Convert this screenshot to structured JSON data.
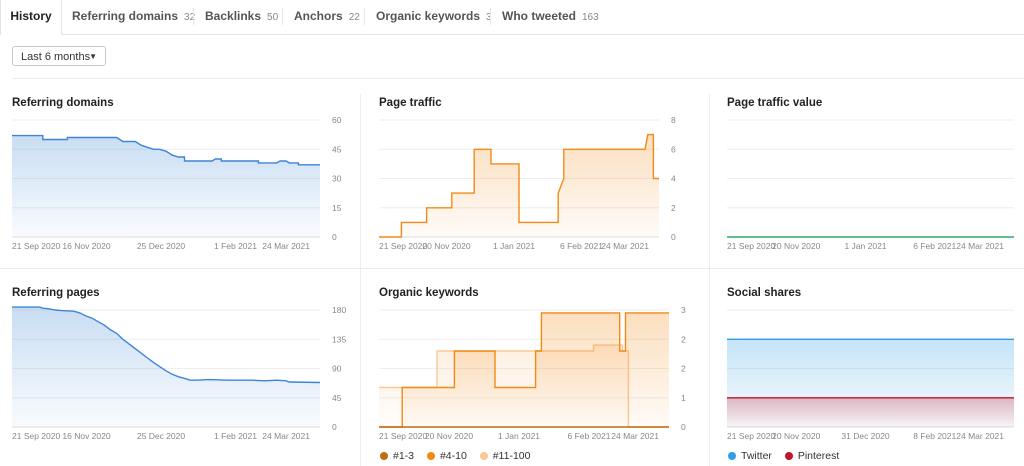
{
  "tabs": [
    {
      "label": "History",
      "count": ""
    },
    {
      "label": "Referring domains",
      "count": "32"
    },
    {
      "label": "Backlinks",
      "count": "50"
    },
    {
      "label": "Anchors",
      "count": "22"
    },
    {
      "label": "Organic keywords",
      "count": "3"
    },
    {
      "label": "Who tweeted",
      "count": "163"
    }
  ],
  "period_dropdown": {
    "value": "Last 6 months",
    "caret": "▼"
  },
  "chart_data": [
    {
      "title": "Referring domains",
      "type": "area",
      "x_ticks": [
        "21 Sep 2020",
        "16 Nov 2020",
        "25 Dec 2020",
        "1 Feb 2021",
        "24 Mar 2021"
      ],
      "y_ticks": [
        "60",
        "45",
        "30",
        "15",
        "0"
      ],
      "ylim": [
        0,
        60
      ],
      "color": "#3d86d6",
      "series": [
        {
          "values": [
            [
              0,
              52
            ],
            [
              0.1,
              52
            ],
            [
              0.1,
              50
            ],
            [
              0.18,
              50
            ],
            [
              0.18,
              51
            ],
            [
              0.34,
              51
            ],
            [
              0.36,
              49
            ],
            [
              0.4,
              49
            ],
            [
              0.42,
              47
            ],
            [
              0.44,
              46
            ],
            [
              0.46,
              45
            ],
            [
              0.48,
              45
            ],
            [
              0.5,
              44
            ],
            [
              0.52,
              42
            ],
            [
              0.54,
              41
            ],
            [
              0.56,
              41
            ],
            [
              0.56,
              39
            ],
            [
              0.65,
              39
            ],
            [
              0.66,
              40
            ],
            [
              0.68,
              40
            ],
            [
              0.68,
              39
            ],
            [
              0.8,
              39
            ],
            [
              0.8,
              38
            ],
            [
              0.86,
              38
            ],
            [
              0.87,
              39
            ],
            [
              0.89,
              39
            ],
            [
              0.9,
              38
            ],
            [
              0.93,
              38
            ],
            [
              0.93,
              37
            ],
            [
              1,
              37
            ]
          ]
        }
      ]
    },
    {
      "title": "Page traffic",
      "type": "area",
      "x_ticks": [
        "21 Sep 2020",
        "20 Nov 2020",
        "1 Jan 2021",
        "6 Feb 2021",
        "24 Mar 2021"
      ],
      "y_ticks": [
        "8",
        "6",
        "4",
        "2",
        "0"
      ],
      "ylim": [
        0,
        8
      ],
      "color": "#f28a17",
      "series": [
        {
          "values": [
            [
              0,
              0
            ],
            [
              0.08,
              0
            ],
            [
              0.08,
              1
            ],
            [
              0.17,
              1
            ],
            [
              0.17,
              2
            ],
            [
              0.26,
              2
            ],
            [
              0.26,
              3
            ],
            [
              0.26,
              3
            ],
            [
              0.26,
              3
            ],
            [
              0.26,
              3
            ],
            [
              0.26,
              3
            ],
            [
              0.26,
              3
            ],
            [
              0.26,
              3
            ],
            [
              0.26,
              3
            ],
            [
              0.26,
              3
            ],
            [
              0.26,
              3
            ],
            [
              0.26,
              3
            ],
            [
              0.26,
              3
            ],
            [
              0.26,
              3
            ],
            [
              0.26,
              3
            ],
            [
              0.26,
              3
            ],
            [
              0.26,
              3
            ],
            [
              0.26,
              3
            ],
            [
              0.26,
              3
            ],
            [
              0.26,
              3
            ],
            [
              0.26,
              3
            ],
            [
              0.26,
              3
            ],
            [
              0.26,
              3
            ],
            [
              0.26,
              3
            ],
            [
              0.26,
              3
            ],
            [
              0.26,
              3
            ],
            [
              0.26,
              3
            ],
            [
              0.26,
              3
            ],
            [
              0.26,
              3
            ],
            [
              0.26,
              3
            ],
            [
              0.26,
              3
            ],
            [
              0.26,
              3
            ],
            [
              0.26,
              3
            ],
            [
              0.26,
              3
            ],
            [
              0.26,
              3
            ],
            [
              0.26,
              3
            ],
            [
              0.26,
              3
            ],
            [
              0.26,
              3
            ],
            [
              0.26,
              3
            ],
            [
              0.26,
              3
            ],
            [
              0.26,
              3
            ],
            [
              0.26,
              3
            ],
            [
              0.26,
              3
            ],
            [
              0.26,
              3
            ],
            [
              0.26,
              3
            ],
            [
              0.26,
              3
            ],
            [
              0.26,
              3
            ],
            [
              0.26,
              3
            ],
            [
              0.26,
              3
            ],
            [
              0.26,
              3
            ],
            [
              0.34,
              3
            ],
            [
              0.34,
              6
            ],
            [
              0.4,
              6
            ],
            [
              0.4,
              5
            ],
            [
              0.5,
              5
            ],
            [
              0.5,
              1
            ],
            [
              0.64,
              1
            ],
            [
              0.64,
              3
            ],
            [
              0.66,
              4
            ],
            [
              0.66,
              6
            ],
            [
              0.95,
              6
            ],
            [
              0.96,
              7
            ],
            [
              0.98,
              7
            ],
            [
              0.98,
              4
            ],
            [
              1,
              4
            ],
            [
              1,
              4
            ],
            [
              1,
              4
            ],
            [
              1.0,
              4
            ],
            [
              1.0,
              4
            ],
            [
              1.0,
              4
            ],
            [
              1.0,
              4
            ],
            [
              1.0,
              4
            ],
            [
              1.0,
              4
            ]
          ]
        }
      ]
    },
    {
      "title": "Page traffic value",
      "type": "line",
      "x_ticks": [
        "21 Sep 2020",
        "20 Nov 2020",
        "1 Jan 2021",
        "6 Feb 2021",
        "24 Mar 2021"
      ],
      "y_ticks": [],
      "ylim": [
        0,
        8
      ],
      "color": "#2fa86a",
      "series": [
        {
          "values": [
            [
              0,
              0
            ],
            [
              1,
              0
            ]
          ]
        }
      ]
    },
    {
      "title": "Referring pages",
      "type": "area",
      "x_ticks": [
        "21 Sep 2020",
        "16 Nov 2020",
        "25 Dec 2020",
        "1 Feb 2021",
        "24 Mar 2021"
      ],
      "y_ticks": [
        "180",
        "135",
        "90",
        "45",
        "0"
      ],
      "ylim": [
        0,
        200
      ],
      "color": "#3d86d6",
      "series": [
        {
          "values": [
            [
              0,
              205
            ],
            [
              0.09,
              205
            ],
            [
              0.1,
              203
            ],
            [
              0.12,
              202
            ],
            [
              0.14,
              200
            ],
            [
              0.16,
              199
            ],
            [
              0.2,
              198
            ],
            [
              0.22,
              195
            ],
            [
              0.24,
              190
            ],
            [
              0.26,
              186
            ],
            [
              0.28,
              180
            ],
            [
              0.3,
              174
            ],
            [
              0.32,
              166
            ],
            [
              0.34,
              160
            ],
            [
              0.36,
              150
            ],
            [
              0.38,
              142
            ],
            [
              0.4,
              134
            ],
            [
              0.42,
              126
            ],
            [
              0.44,
              118
            ],
            [
              0.46,
              110
            ],
            [
              0.48,
              103
            ],
            [
              0.5,
              96
            ],
            [
              0.52,
              90
            ],
            [
              0.54,
              86
            ],
            [
              0.56,
              83
            ],
            [
              0.58,
              80
            ],
            [
              0.6,
              80
            ],
            [
              0.64,
              81
            ],
            [
              0.7,
              80
            ],
            [
              0.78,
              80
            ],
            [
              0.82,
              79
            ],
            [
              0.86,
              80
            ],
            [
              0.89,
              79
            ],
            [
              0.9,
              77
            ],
            [
              1,
              76
            ]
          ]
        }
      ]
    },
    {
      "title": "Organic keywords",
      "type": "area",
      "x_ticks": [
        "21 Sep 2020",
        "20 Nov 2020",
        "1 Jan 2021",
        "6 Feb 2021",
        "24 Mar 2021"
      ],
      "y_ticks": [
        "3",
        "2",
        "2",
        "1",
        "0"
      ],
      "ylim": [
        0,
        4
      ],
      "series": [
        {
          "name": "#11-100",
          "color": "#fbc895",
          "values": [
            [
              0,
              1.35
            ],
            [
              0.2,
              1.35
            ],
            [
              0.2,
              2.6
            ],
            [
              0.74,
              2.6
            ],
            [
              0.74,
              2.8
            ],
            [
              0.84,
              2.8
            ],
            [
              0.84,
              2.6
            ],
            [
              0.86,
              2.6
            ],
            [
              0.86,
              0
            ],
            [
              1,
              0
            ]
          ]
        },
        {
          "name": "#4-10",
          "color": "#f28a17",
          "values": [
            [
              0,
              0
            ],
            [
              0.08,
              0
            ],
            [
              0.08,
              1.35
            ],
            [
              0.26,
              1.35
            ],
            [
              0.26,
              2.6
            ],
            [
              0.4,
              2.6
            ],
            [
              0.4,
              1.35
            ],
            [
              0.54,
              1.35
            ],
            [
              0.54,
              2.6
            ],
            [
              0.56,
              2.6
            ],
            [
              0.56,
              3.9
            ],
            [
              0.83,
              3.9
            ],
            [
              0.83,
              2.6
            ],
            [
              0.85,
              2.6
            ],
            [
              0.85,
              3.9
            ],
            [
              1,
              3.9
            ]
          ]
        },
        {
          "name": "#1-3",
          "color": "#c06b10",
          "values": [
            [
              0,
              0
            ],
            [
              1,
              0
            ]
          ]
        }
      ]
    },
    {
      "title": "Social shares",
      "type": "area",
      "x_ticks": [
        "21 Sep 2020",
        "20 Nov 2020",
        "31 Dec 2020",
        "8 Feb 2021",
        "24 Mar 2021"
      ],
      "y_ticks": [],
      "ylim": [
        0,
        4
      ],
      "series": [
        {
          "name": "Twitter",
          "color": "#2f9ee5",
          "values": [
            [
              0,
              3
            ],
            [
              1,
              3
            ]
          ]
        },
        {
          "name": "Pinterest",
          "color": "#c0152a",
          "values": [
            [
              0,
              1
            ],
            [
              1,
              1
            ]
          ]
        }
      ]
    }
  ],
  "legends": {
    "organic": [
      {
        "label": "#1-3",
        "color": "#c06b10"
      },
      {
        "label": "#4-10",
        "color": "#f28a17"
      },
      {
        "label": "#11-100",
        "color": "#fbc895"
      }
    ],
    "social": [
      {
        "label": "Twitter",
        "color": "#2f9ee5"
      },
      {
        "label": "Pinterest",
        "color": "#c0152a"
      }
    ]
  }
}
